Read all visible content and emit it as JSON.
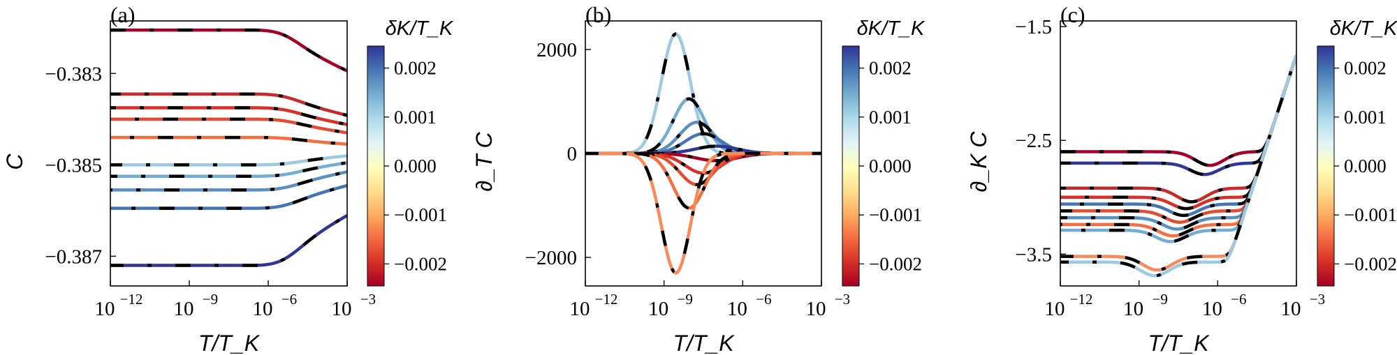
{
  "figure_title": "",
  "colorbar": {
    "label": "δK/T_K",
    "range": [
      -0.00245,
      0.00245
    ],
    "ticks": [
      0.002,
      0.001,
      0.0,
      -0.001,
      -0.002
    ],
    "tick_labels": [
      "0.002",
      "0.001",
      "0.000",
      "−0.001",
      "−0.002"
    ],
    "colors_low_to_high": [
      "#a50026",
      "#d73027",
      "#f46d43",
      "#fdae61",
      "#fee090",
      "#ffffbf",
      "#e0f3f8",
      "#abd9e9",
      "#74add1",
      "#4575b4",
      "#313695"
    ]
  },
  "chart_data": [
    {
      "panel_label": "(a)",
      "type": "line",
      "xlabel": "T/T_K",
      "ylabel": "C",
      "xscale": "log10",
      "xlim": [
        -12,
        -3
      ],
      "x_ticks": [
        -12,
        -9,
        -6,
        -3
      ],
      "x_tick_labels": [
        "10",
        "10",
        "10",
        "10"
      ],
      "x_tick_exponents": [
        "−12",
        "−9",
        "−6",
        "−3"
      ],
      "ylim": [
        -0.38765,
        -0.38185
      ],
      "y_ticks": [
        -0.383,
        -0.385,
        -0.387
      ],
      "y_tick_labels": [
        "−0.383",
        "−0.385",
        "−0.387"
      ],
      "legend": "none",
      "dashed_overlay": "black dash-dot fit on every curve",
      "series": [
        {
          "name": "-0.0024",
          "dK": -0.0024,
          "color": "#a50026",
          "plateau": -0.38205,
          "end": -0.38295
        },
        {
          "name": "-0.0019",
          "dK": -0.0019,
          "color": "#c62a2b",
          "plateau": -0.38345,
          "end": -0.38392
        },
        {
          "name": "-0.0016",
          "dK": -0.0016,
          "color": "#d73027",
          "plateau": -0.38375,
          "end": -0.38412
        },
        {
          "name": "-0.0013",
          "dK": -0.0013,
          "color": "#e54b32",
          "plateau": -0.384,
          "end": -0.3843
        },
        {
          "name": "-0.0010",
          "dK": -0.001,
          "color": "#f46d43",
          "plateau": -0.3844,
          "end": -0.38455
        },
        {
          "name": "0.0007",
          "dK": 0.0007,
          "color": "#9ecae1",
          "plateau": -0.385,
          "end": -0.3848
        },
        {
          "name": "0.0010",
          "dK": 0.001,
          "color": "#74add1",
          "plateau": -0.38525,
          "end": -0.38495
        },
        {
          "name": "0.0013",
          "dK": 0.0013,
          "color": "#5a8fc2",
          "plateau": -0.38555,
          "end": -0.38515
        },
        {
          "name": "0.0016",
          "dK": 0.0016,
          "color": "#4575b4",
          "plateau": -0.38595,
          "end": -0.38545
        },
        {
          "name": "0.0024",
          "dK": 0.0024,
          "color": "#313695",
          "plateau": -0.3872,
          "end": -0.3861
        }
      ]
    },
    {
      "panel_label": "(b)",
      "type": "line",
      "xlabel": "T/T_K",
      "ylabel": "∂_T C",
      "xscale": "log10",
      "xlim": [
        -12,
        -3
      ],
      "x_ticks": [
        -12,
        -9,
        -6,
        -3
      ],
      "x_tick_labels": [
        "10",
        "10",
        "10",
        "10"
      ],
      "x_tick_exponents": [
        "−12",
        "−9",
        "−6",
        "−3"
      ],
      "ylim": [
        -2550,
        2550
      ],
      "y_ticks": [
        2000,
        0,
        -2000
      ],
      "y_tick_labels": [
        "2000",
        "0",
        "−2000"
      ],
      "legend": "none",
      "dashed_overlay": "black dash-dot fit on every curve",
      "series": [
        {
          "name": "0.0007",
          "dK": 0.0007,
          "color": "#9ecae1",
          "peak": 2300,
          "peak_x": -8.55,
          "width": 0.55
        },
        {
          "name": "0.0010",
          "dK": 0.001,
          "color": "#74add1",
          "peak": 1050,
          "peak_x": -8.05,
          "width": 0.6
        },
        {
          "name": "0.0013",
          "dK": 0.0013,
          "color": "#5a8fc2",
          "peak": 600,
          "peak_x": -7.75,
          "width": 0.65
        },
        {
          "name": "0.0016",
          "dK": 0.0016,
          "color": "#4575b4",
          "peak": 380,
          "peak_x": -7.5,
          "width": 0.7
        },
        {
          "name": "0.0024",
          "dK": 0.0024,
          "color": "#313695",
          "peak": 140,
          "peak_x": -7.0,
          "width": 0.8
        },
        {
          "name": "-0.0024",
          "dK": -0.0024,
          "color": "#a50026",
          "peak": -140,
          "peak_x": -7.0,
          "width": 0.8
        },
        {
          "name": "-0.0016",
          "dK": -0.0016,
          "color": "#d73027",
          "peak": -380,
          "peak_x": -7.5,
          "width": 0.7
        },
        {
          "name": "-0.0013",
          "dK": -0.0013,
          "color": "#e54b32",
          "peak": -600,
          "peak_x": -7.75,
          "width": 0.65
        },
        {
          "name": "-0.0010",
          "dK": -0.001,
          "color": "#f46d43",
          "peak": -1050,
          "peak_x": -8.05,
          "width": 0.6
        },
        {
          "name": "-0.0007",
          "dK": -0.0007,
          "color": "#fb8a5a",
          "peak": -2300,
          "peak_x": -8.55,
          "width": 0.55
        }
      ]
    },
    {
      "panel_label": "(c)",
      "type": "line",
      "xlabel": "T/T_K",
      "ylabel": "∂_K C",
      "xscale": "log10",
      "xlim": [
        -12,
        -3
      ],
      "x_ticks": [
        -12,
        -9,
        -6,
        -3
      ],
      "x_tick_labels": [
        "10",
        "10",
        "10",
        "10"
      ],
      "x_tick_exponents": [
        "−12",
        "−9",
        "−6",
        "−3"
      ],
      "ylim": [
        -3.78,
        -1.45
      ],
      "y_ticks": [
        -1.5,
        -2.5,
        -3.5
      ],
      "y_tick_labels": [
        "−1.5",
        "−2.5",
        "−3.5"
      ],
      "legend": "none",
      "dashed_overlay": "black dash-dot fit on every curve",
      "asymptote": {
        "slope_per_decade": 0.7,
        "value_at_x_minus3": -1.75
      },
      "series": [
        {
          "name": "-0.0024",
          "dK": -0.0024,
          "color": "#a50026",
          "plateau": -2.6,
          "dip": 0.12,
          "dip_x": -6.3
        },
        {
          "name": "0.0024",
          "dK": 0.0024,
          "color": "#313695",
          "plateau": -2.7,
          "dip": 0.1,
          "dip_x": -6.5
        },
        {
          "name": "-0.0019",
          "dK": -0.0019,
          "color": "#c62a2b",
          "plateau": -2.92,
          "dip": 0.12,
          "dip_x": -7.0
        },
        {
          "name": "-0.0016",
          "dK": -0.0016,
          "color": "#d73027",
          "plateau": -3.0,
          "dip": 0.1,
          "dip_x": -7.2
        },
        {
          "name": "0.0016",
          "dK": 0.0016,
          "color": "#4575b4",
          "plateau": -3.06,
          "dip": 0.1,
          "dip_x": -7.3
        },
        {
          "name": "-0.0013",
          "dK": -0.0013,
          "color": "#e54b32",
          "plateau": -3.12,
          "dip": 0.1,
          "dip_x": -7.45
        },
        {
          "name": "0.0013",
          "dK": 0.0013,
          "color": "#5a8fc2",
          "plateau": -3.18,
          "dip": 0.1,
          "dip_x": -7.55
        },
        {
          "name": "-0.0010",
          "dK": -0.001,
          "color": "#f46d43",
          "plateau": -3.24,
          "dip": 0.1,
          "dip_x": -7.7
        },
        {
          "name": "0.0010",
          "dK": 0.001,
          "color": "#74add1",
          "plateau": -3.29,
          "dip": 0.1,
          "dip_x": -7.8
        },
        {
          "name": "-0.0007",
          "dK": -0.0007,
          "color": "#fb8a5a",
          "plateau": -3.52,
          "dip": 0.12,
          "dip_x": -8.3
        },
        {
          "name": "0.0007",
          "dK": 0.0007,
          "color": "#9ecae1",
          "plateau": -3.57,
          "dip": 0.12,
          "dip_x": -8.4
        }
      ]
    }
  ]
}
